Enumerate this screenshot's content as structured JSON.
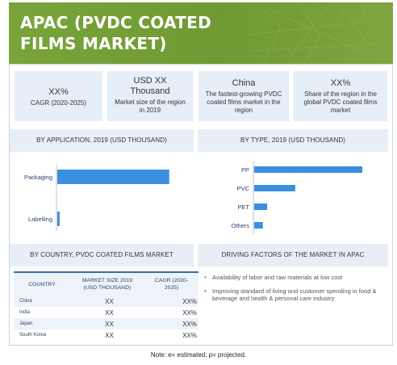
{
  "header": {
    "title": "APAC (PVDC COATED FILMS MARKET)"
  },
  "kpis": [
    {
      "value": "XX%",
      "label": "CAGR (2020-2025)"
    },
    {
      "value": "USD XX Thousand",
      "label": "Market size of the region in 2019"
    },
    {
      "value": "China",
      "label": "The fastest-growing PVDC coated films market in the region"
    },
    {
      "value": "XX%",
      "label": "Share of the region in the global PVDC coated films market"
    }
  ],
  "panels": {
    "by_application": "BY APPLICATION, 2019 (USD THOUSAND)",
    "by_type": "BY TYPE, 2019 (USD THOUSAND)",
    "by_country": "BY COUNTRY, PVDC COATED FILMS MARKET",
    "driving_factors": "DRIVING FACTORS OF THE MARKET IN APAC"
  },
  "chart_data": [
    {
      "type": "bar",
      "orientation": "horizontal",
      "categories": [
        "Packaging",
        "Labelling"
      ],
      "values": [
        95,
        2
      ],
      "title": "BY APPLICATION, 2019 (USD THOUSAND)",
      "xlim": [
        0,
        100
      ],
      "grid": false,
      "color": "#3b8fde"
    },
    {
      "type": "bar",
      "orientation": "horizontal",
      "categories": [
        "PP",
        "PVC",
        "PET",
        "Others"
      ],
      "values": [
        100,
        38,
        12,
        8
      ],
      "title": "BY TYPE, 2019 (USD THOUSAND)",
      "xlim": [
        0,
        100
      ],
      "grid": false,
      "color": "#3b8fde"
    }
  ],
  "country_table": {
    "headers": [
      "COUNTRY",
      "MARKET SIZE 2019 (USD THOUSAND)",
      "CAGR (2020-2025)"
    ],
    "rows": [
      [
        "China",
        "XX",
        "XX%"
      ],
      [
        "India",
        "XX",
        "XX%"
      ],
      [
        "Japan",
        "XX",
        "XX%"
      ],
      [
        "South Korea",
        "XX",
        "XX%"
      ]
    ]
  },
  "driving_factors": [
    "Availability of labor and raw materials at low cost",
    "Improving standard of living and customer spending in food & beverage and health & personal care industry"
  ],
  "footnote": "Note: e= estimated; p= projected.",
  "colors": {
    "banner": "#74a037",
    "bar": "#3b8fde",
    "panel": "#e9eef6",
    "table_rule": "#2e6fb0"
  }
}
